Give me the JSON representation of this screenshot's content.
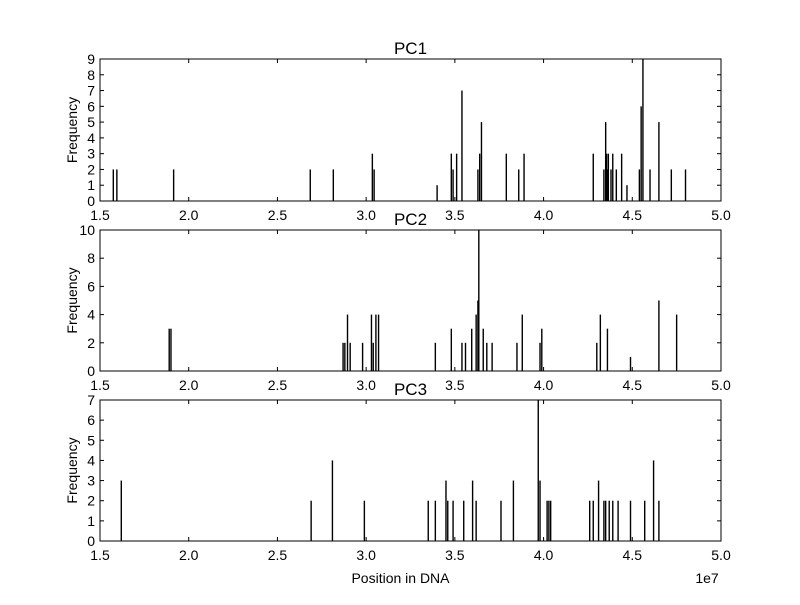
{
  "chart_data": [
    {
      "type": "bar",
      "title": "PC1",
      "xlabel": "",
      "ylabel": "Frequency",
      "xlim": [
        15000000,
        50000000
      ],
      "ylim": [
        0,
        9
      ],
      "yticks": [
        "0",
        "1",
        "2",
        "3",
        "4",
        "5",
        "6",
        "7",
        "8",
        "9"
      ],
      "xticks": [
        "1.5",
        "2.0",
        "2.5",
        "3.0",
        "3.5",
        "4.0",
        "4.5",
        "5.0"
      ],
      "x": [
        15750000,
        15950000,
        19150000,
        26850000,
        28150000,
        30350000,
        30450000,
        34000000,
        34800000,
        34900000,
        35100000,
        35400000,
        36300000,
        36400000,
        36500000,
        37900000,
        38600000,
        38900000,
        42800000,
        43400000,
        43500000,
        43550000,
        43600000,
        43650000,
        43800000,
        43900000,
        44100000,
        44400000,
        44700000,
        45400000,
        45500000,
        45600000,
        46000000,
        46500000,
        47200000,
        48000000
      ],
      "values": [
        2,
        2,
        2,
        2,
        2,
        3,
        2,
        1,
        3,
        2,
        3,
        7,
        2,
        3,
        5,
        3,
        2,
        3,
        3,
        2,
        5,
        3,
        2,
        3,
        2,
        3,
        2,
        3,
        1,
        2,
        6,
        9,
        2,
        5,
        2,
        2
      ]
    },
    {
      "type": "bar",
      "title": "PC2",
      "xlabel": "",
      "ylabel": "Frequency",
      "xlim": [
        15000000,
        50000000
      ],
      "ylim": [
        0,
        10
      ],
      "yticks": [
        "0",
        "2",
        "4",
        "6",
        "8",
        "10"
      ],
      "xticks": [
        "1.5",
        "2.0",
        "2.5",
        "3.0",
        "3.5",
        "4.0",
        "4.5",
        "5.0"
      ],
      "x": [
        18900000,
        19000000,
        28700000,
        28800000,
        28950000,
        29100000,
        29800000,
        30300000,
        30400000,
        30550000,
        30700000,
        33900000,
        34800000,
        35400000,
        35600000,
        35950000,
        36200000,
        36300000,
        36350000,
        36600000,
        36800000,
        37100000,
        38500000,
        38800000,
        39800000,
        39900000,
        43000000,
        43200000,
        43600000,
        44900000,
        46500000,
        47500000
      ],
      "values": [
        3,
        3,
        2,
        2,
        4,
        2,
        2,
        4,
        2,
        4,
        4,
        2,
        3,
        2,
        2,
        3,
        4,
        5,
        10,
        3,
        2,
        2,
        2,
        4,
        2,
        3,
        2,
        4,
        3,
        1,
        5,
        4
      ]
    },
    {
      "type": "bar",
      "title": "PC3",
      "xlabel": "Position in DNA",
      "ylabel": "Frequency",
      "xlim": [
        15000000,
        50000000
      ],
      "ylim": [
        0,
        7
      ],
      "yticks": [
        "0",
        "1",
        "2",
        "3",
        "4",
        "5",
        "6",
        "7"
      ],
      "xticks": [
        "1.5",
        "2.0",
        "2.5",
        "3.0",
        "3.5",
        "4.0",
        "4.5",
        "5.0"
      ],
      "x_multiplier": "1e7",
      "x": [
        16200000,
        26900000,
        28100000,
        29900000,
        33500000,
        33900000,
        34500000,
        34600000,
        34900000,
        35500000,
        36000000,
        36200000,
        37600000,
        38300000,
        39700000,
        39800000,
        40200000,
        40300000,
        40400000,
        42600000,
        42800000,
        43100000,
        43400000,
        43500000,
        43700000,
        43900000,
        44200000,
        44900000,
        45700000,
        46200000,
        46500000
      ],
      "values": [
        3,
        2,
        4,
        2,
        2,
        2,
        3,
        2,
        2,
        2,
        3,
        2,
        2,
        3,
        7,
        3,
        2,
        2,
        2,
        2,
        2,
        3,
        2,
        2,
        2,
        2,
        2,
        2,
        2,
        4,
        2
      ]
    }
  ]
}
